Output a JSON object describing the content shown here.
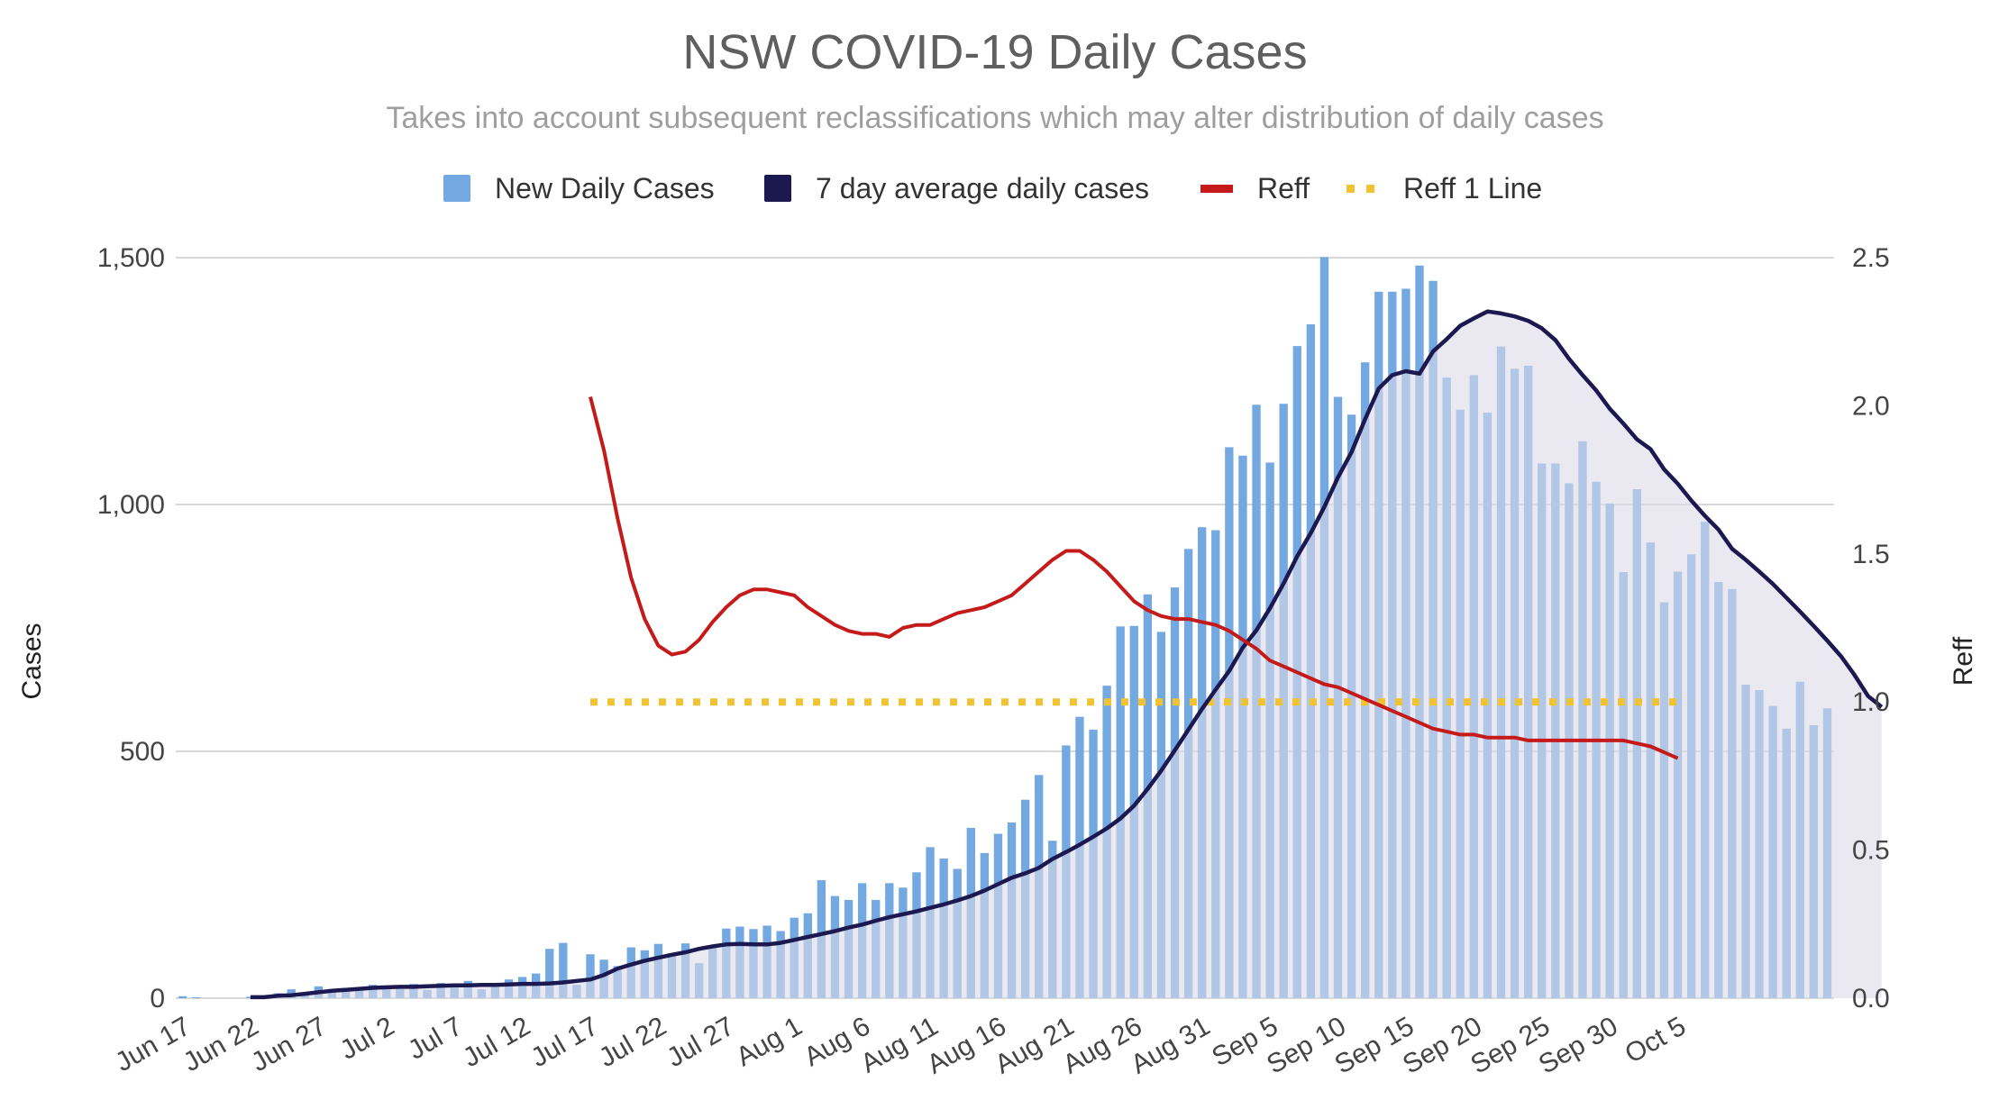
{
  "chart_data": {
    "type": "bar",
    "title": "NSW COVID-19 Daily Cases",
    "subtitle": "Takes into account subsequent reclassifications which may alter distribution of daily cases",
    "ylabel": "Cases",
    "y2label": "Reff",
    "ylim": [
      0,
      1500
    ],
    "y2lim": [
      0,
      2.5
    ],
    "y_ticks": [
      0,
      500,
      1000,
      1500
    ],
    "y_tick_labels": [
      "0",
      "500",
      "1,000",
      "1,500"
    ],
    "y2_ticks": [
      0,
      0.5,
      1.0,
      1.5,
      2.0,
      2.5
    ],
    "y2_tick_labels": [
      "0.0",
      "0.5",
      "1.0",
      "1.5",
      "2.0",
      "2.5"
    ],
    "x_tick_labels": [
      "Jun 17",
      "Jun 22",
      "Jun 27",
      "Jul 2",
      "Jul 7",
      "Jul 12",
      "Jul 17",
      "Jul 22",
      "Jul 27",
      "Aug 1",
      "Aug 6",
      "Aug 11",
      "Aug 16",
      "Aug 21",
      "Aug 26",
      "Aug 31",
      "Sep 5",
      "Sep 10",
      "Sep 15",
      "Sep 20",
      "Sep 25",
      "Sep 30",
      "Oct 5"
    ],
    "x_tick_index": [
      0,
      5,
      10,
      15,
      20,
      25,
      30,
      35,
      40,
      45,
      50,
      55,
      60,
      65,
      70,
      75,
      80,
      85,
      90,
      95,
      100,
      105,
      110
    ],
    "grid": true,
    "legend_position": "top",
    "colors": {
      "bars": "#73a9e0",
      "avg_line": "#1c1850",
      "avg_fill": "#dcdae8",
      "reff_line": "#c41a1a",
      "reff1_line": "#f1c232",
      "grid": "#d9d9d9"
    },
    "legend": [
      {
        "name": "New Daily Cases",
        "color": "#73a9e0",
        "style": "box"
      },
      {
        "name": "7 day average daily cases",
        "color": "#1c1850",
        "style": "box"
      },
      {
        "name": "Reff",
        "color": "#c41a1a",
        "style": "line"
      },
      {
        "name": "Reff 1 Line",
        "color": "#f1c232",
        "style": "dots"
      }
    ],
    "series": [
      {
        "name": "New Daily Cases",
        "axis": "left",
        "type": "bar",
        "values": [
          4,
          2,
          0,
          0,
          0,
          3,
          0,
          10,
          18,
          11,
          24,
          19,
          16,
          22,
          27,
          18,
          24,
          29,
          17,
          31,
          27,
          35,
          18,
          27,
          38,
          43,
          50,
          100,
          112,
          27,
          89,
          78,
          65,
          103,
          97,
          110,
          91,
          111,
          71,
          105,
          141,
          145,
          140,
          147,
          136,
          163,
          172,
          239,
          207,
          199,
          233,
          199,
          233,
          224,
          255,
          306,
          283,
          262,
          345,
          294,
          333,
          356,
          402,
          452,
          319,
          512,
          570,
          544,
          633,
          753,
          754,
          818,
          742,
          832,
          910,
          954,
          948,
          1116,
          1099,
          1202,
          1085,
          1204,
          1321,
          1365,
          1501,
          1218,
          1182,
          1288,
          1431,
          1431,
          1437,
          1484,
          1453,
          1257,
          1192,
          1262,
          1186,
          1320,
          1275,
          1281,
          1083,
          1083,
          1043,
          1128,
          1046,
          1002,
          863,
          1031,
          923,
          802,
          864,
          899,
          965,
          843,
          829,
          635,
          624,
          592,
          546,
          641,
          553,
          587
        ]
      },
      {
        "name": "7 day average daily cases",
        "axis": "left",
        "type": "line",
        "start_index": 5,
        "values": [
          2,
          2,
          5,
          6,
          9,
          12,
          15,
          17,
          19,
          21,
          22,
          23,
          23,
          24,
          25,
          26,
          26,
          27,
          27,
          28,
          29,
          29,
          30,
          32,
          35,
          38,
          47,
          60,
          68,
          76,
          82,
          88,
          93,
          100,
          105,
          109,
          110,
          109,
          109,
          112,
          118,
          124,
          130,
          136,
          143,
          149,
          157,
          164,
          170,
          176,
          183,
          190,
          198,
          207,
          218,
          231,
          244,
          253,
          264,
          282,
          296,
          311,
          327,
          344,
          364,
          390,
          424,
          461,
          502,
          544,
          586,
          625,
          663,
          710,
          745,
          790,
          840,
          895,
          942,
          995,
          1055,
          1106,
          1173,
          1235,
          1262,
          1270,
          1265,
          1310,
          1335,
          1362,
          1377,
          1391,
          1387,
          1381,
          1372,
          1357,
          1333,
          1295,
          1262,
          1231,
          1194,
          1164,
          1132,
          1112,
          1071,
          1042,
          1008,
          977,
          949,
          910,
          888,
          864,
          839,
          811,
          783,
          754,
          724,
          693,
          655,
          612,
          590
        ]
      },
      {
        "name": "Reff",
        "axis": "right",
        "type": "line",
        "start_index": 30,
        "values": [
          2.03,
          1.85,
          1.62,
          1.42,
          1.28,
          1.19,
          1.16,
          1.17,
          1.21,
          1.27,
          1.32,
          1.36,
          1.38,
          1.38,
          1.37,
          1.36,
          1.32,
          1.29,
          1.26,
          1.24,
          1.23,
          1.23,
          1.22,
          1.25,
          1.26,
          1.26,
          1.28,
          1.3,
          1.31,
          1.32,
          1.34,
          1.36,
          1.4,
          1.44,
          1.48,
          1.51,
          1.51,
          1.48,
          1.44,
          1.39,
          1.34,
          1.31,
          1.29,
          1.28,
          1.28,
          1.27,
          1.26,
          1.24,
          1.21,
          1.18,
          1.14,
          1.12,
          1.1,
          1.08,
          1.06,
          1.05,
          1.03,
          1.01,
          0.99,
          0.97,
          0.95,
          0.93,
          0.91,
          0.9,
          0.89,
          0.89,
          0.88,
          0.88,
          0.88,
          0.87,
          0.87,
          0.87,
          0.87,
          0.87,
          0.87,
          0.87,
          0.87,
          0.86,
          0.85,
          0.83,
          0.81
        ]
      },
      {
        "name": "Reff 1 Line",
        "axis": "right",
        "type": "line",
        "start_index": 30,
        "end_index": 110,
        "values": [
          1.0,
          1.0
        ]
      }
    ]
  }
}
